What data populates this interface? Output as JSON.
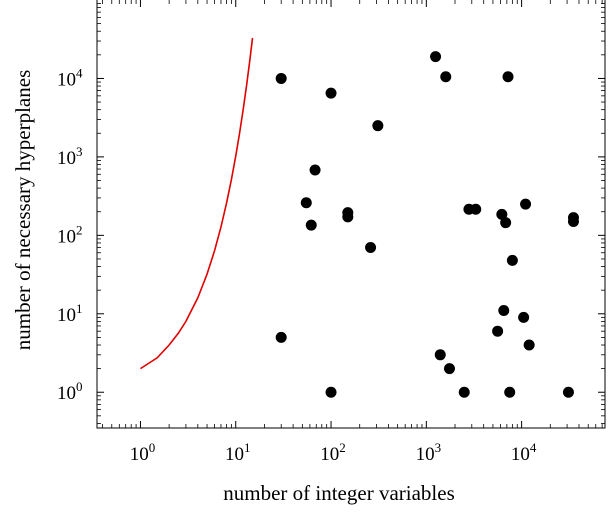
{
  "chart_data": {
    "type": "scatter",
    "title": "",
    "xlabel": "number of integer variables",
    "ylabel": "number of necessary hyperplanes",
    "x_scale": "log",
    "y_scale": "log",
    "xlim": [
      0.35,
      75000
    ],
    "ylim": [
      0.35,
      100000
    ],
    "grid": false,
    "legend": "none",
    "colors": {
      "points": "#000000",
      "curve": "#e00000"
    },
    "x_ticks": [
      {
        "base": "10",
        "exp": "0",
        "value": 1
      },
      {
        "base": "10",
        "exp": "1",
        "value": 10
      },
      {
        "base": "10",
        "exp": "2",
        "value": 100
      },
      {
        "base": "10",
        "exp": "3",
        "value": 1000
      },
      {
        "base": "10",
        "exp": "4",
        "value": 10000
      }
    ],
    "y_ticks": [
      {
        "base": "10",
        "exp": "0",
        "value": 1
      },
      {
        "base": "10",
        "exp": "1",
        "value": 10
      },
      {
        "base": "10",
        "exp": "2",
        "value": 100
      },
      {
        "base": "10",
        "exp": "3",
        "value": 1000
      },
      {
        "base": "10",
        "exp": "4",
        "value": 10000
      }
    ],
    "series": [
      {
        "kind": "scatter",
        "color": "#000000",
        "points": [
          [
            30,
            10000
          ],
          [
            100,
            6500
          ],
          [
            310,
            2500
          ],
          [
            1250,
            19000
          ],
          [
            1600,
            10500
          ],
          [
            7200,
            10500
          ],
          [
            68,
            680
          ],
          [
            55,
            260
          ],
          [
            62,
            135
          ],
          [
            150,
            195
          ],
          [
            150,
            172
          ],
          [
            260,
            70
          ],
          [
            2800,
            215
          ],
          [
            3300,
            215
          ],
          [
            6200,
            185
          ],
          [
            6800,
            145
          ],
          [
            11000,
            250
          ],
          [
            8000,
            48
          ],
          [
            35000,
            168
          ],
          [
            35000,
            150
          ],
          [
            30,
            5
          ],
          [
            100,
            1
          ],
          [
            1400,
            3
          ],
          [
            1750,
            2
          ],
          [
            2500,
            1
          ],
          [
            5600,
            6
          ],
          [
            6500,
            11
          ],
          [
            10500,
            9
          ],
          [
            12000,
            4
          ],
          [
            7500,
            1
          ],
          [
            31000,
            1
          ]
        ]
      },
      {
        "kind": "line",
        "color": "#e00000",
        "points": [
          [
            1,
            2
          ],
          [
            1.5,
            2.75
          ],
          [
            2,
            4
          ],
          [
            2.5,
            5.66
          ],
          [
            3,
            8
          ],
          [
            4,
            16
          ],
          [
            5,
            32
          ],
          [
            6,
            64
          ],
          [
            7,
            128
          ],
          [
            8,
            256
          ],
          [
            9,
            512
          ],
          [
            10,
            1024
          ],
          [
            11,
            2048
          ],
          [
            12,
            4096
          ],
          [
            13,
            8192
          ],
          [
            14,
            16384
          ],
          [
            15,
            32768
          ]
        ]
      }
    ]
  }
}
